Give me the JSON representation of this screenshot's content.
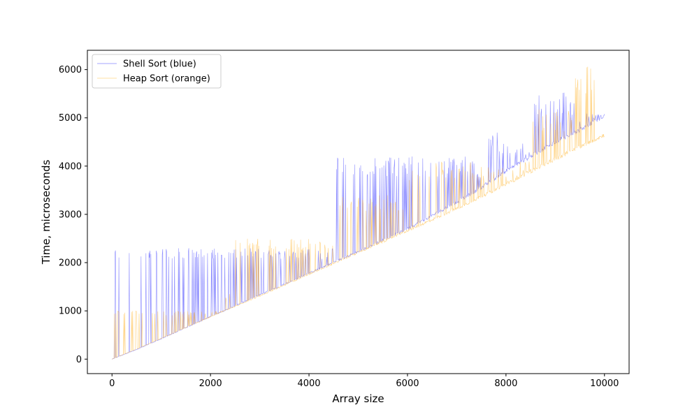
{
  "chart_data": {
    "type": "line",
    "title": "",
    "xlabel": "Array size",
    "ylabel": "Time, microseconds",
    "xlim": [
      -500,
      10500
    ],
    "ylim": [
      -300,
      6400
    ],
    "x_ticks": [
      0,
      2000,
      4000,
      6000,
      8000,
      10000
    ],
    "y_ticks": [
      0,
      1000,
      2000,
      3000,
      4000,
      5000,
      6000
    ],
    "x_tick_labels": [
      "0",
      "2000",
      "4000",
      "6000",
      "8000",
      "10000"
    ],
    "y_tick_labels": [
      "0",
      "1000",
      "2000",
      "3000",
      "4000",
      "5000",
      "6000"
    ],
    "grid": false,
    "legend_position": "top-left",
    "x_step": 10,
    "series": [
      {
        "name": "Shell Sort (blue)",
        "color": "#0000ff",
        "baseline_x": [
          0,
          500,
          1000,
          2000,
          3000,
          4000,
          5000,
          6000,
          7000,
          7500,
          8000,
          9000,
          9500,
          10000
        ],
        "baseline_y": [
          0,
          200,
          420,
          880,
          1330,
          1780,
          2230,
          2700,
          3250,
          3550,
          3900,
          4500,
          4750,
          5050
        ],
        "spike_regions": [
          {
            "from": 0,
            "to": 4500,
            "max": 2300
          },
          {
            "from": 4500,
            "to": 7450,
            "max": 4200
          },
          {
            "from": 7450,
            "to": 7600,
            "max": 3800
          },
          {
            "from": 7600,
            "to": 8500,
            "max": 4700
          },
          {
            "from": 8500,
            "to": 9420,
            "max": 5600
          },
          {
            "from": 9420,
            "to": 10000,
            "max": 5100
          }
        ]
      },
      {
        "name": "Heap Sort (orange)",
        "color": "#ffa500",
        "baseline_x": [
          0,
          500,
          1000,
          2000,
          3000,
          4000,
          5000,
          6000,
          7000,
          8000,
          9000,
          10000
        ],
        "baseline_y": [
          0,
          210,
          430,
          880,
          1310,
          1760,
          2210,
          2660,
          3120,
          3620,
          4150,
          4650
        ],
        "spike_regions": [
          {
            "from": 0,
            "to": 2300,
            "max": 1000
          },
          {
            "from": 2300,
            "to": 2500,
            "max": 1350
          },
          {
            "from": 2500,
            "to": 4500,
            "max": 2500
          },
          {
            "from": 4500,
            "to": 6000,
            "max": 3400
          },
          {
            "from": 6000,
            "to": 8500,
            "max": 4100
          },
          {
            "from": 8500,
            "to": 9400,
            "max": 5200
          },
          {
            "from": 9400,
            "to": 10000,
            "max": 6100
          }
        ]
      }
    ]
  }
}
